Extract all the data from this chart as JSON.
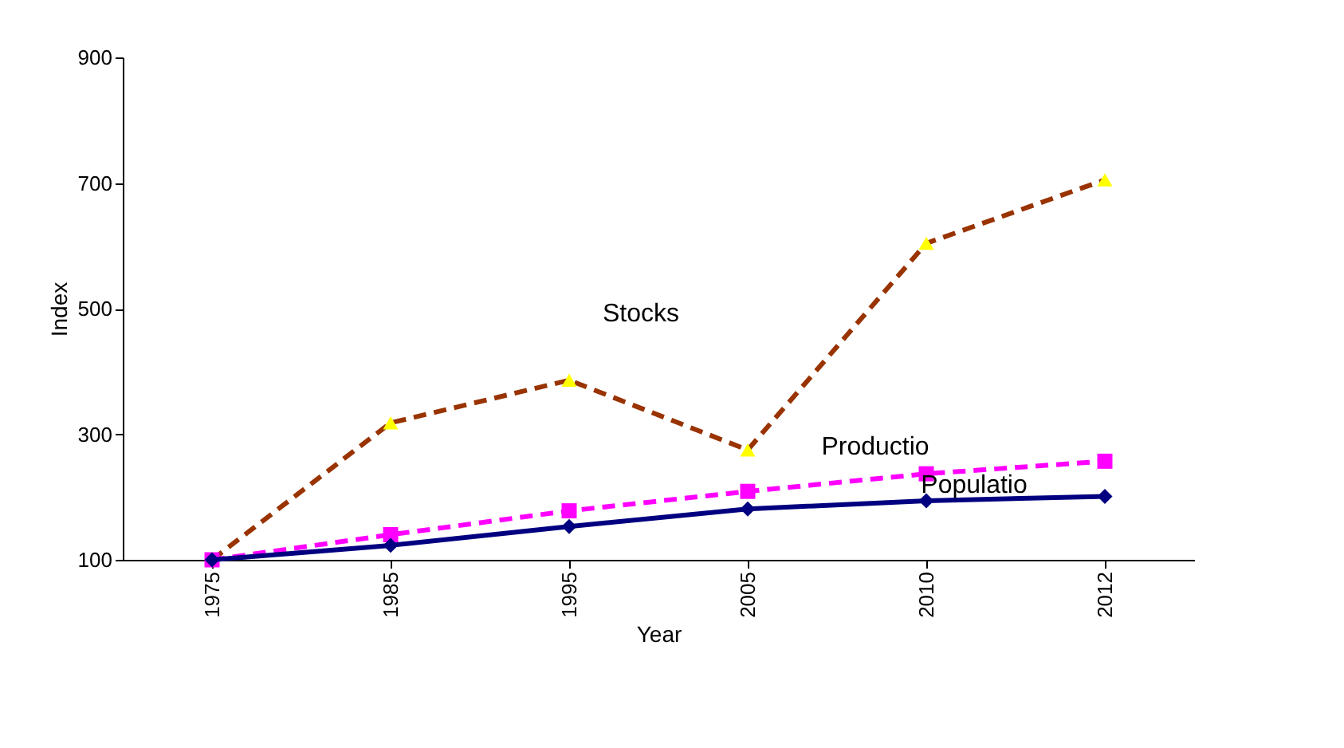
{
  "chart_data": {
    "type": "line",
    "xlabel": "Year",
    "ylabel": "Index",
    "categories": [
      "1975",
      "1985",
      "1995",
      "2005",
      "2010",
      "2012"
    ],
    "series": [
      {
        "name": "Stocks",
        "color": "#993300",
        "line_style": "dashed",
        "marker": "triangle",
        "values": [
          100,
          318,
          386,
          275,
          604,
          705
        ]
      },
      {
        "name": "Productio",
        "color": "#ff00ff",
        "line_style": "dashed",
        "marker": "square",
        "values": [
          100,
          140,
          178,
          209,
          237,
          257
        ]
      },
      {
        "name": "Populatio",
        "color": "#000080",
        "line_style": "solid",
        "marker": "diamond",
        "values": [
          100,
          123,
          153,
          181,
          194,
          201
        ]
      }
    ],
    "ylim": [
      100,
      900
    ],
    "yticks": [
      100,
      300,
      500,
      700,
      900
    ],
    "grid": false,
    "legend": false
  }
}
